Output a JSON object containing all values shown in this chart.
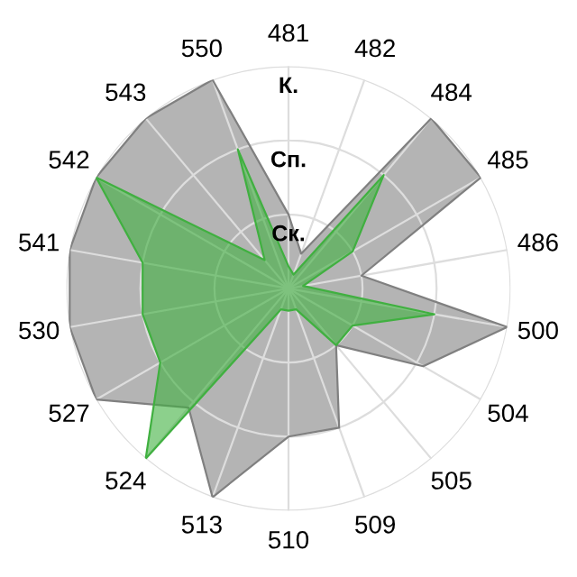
{
  "chart_data": {
    "type": "radar",
    "categories": [
      "481",
      "482",
      "484",
      "485",
      "486",
      "500",
      "504",
      "505",
      "509",
      "510",
      "513",
      "524",
      "527",
      "530",
      "541",
      "542",
      "543",
      "550"
    ],
    "series": [
      {
        "color": "#b4b4b4",
        "values": [
          1,
          0.5,
          3,
          3,
          1,
          3,
          2.1,
          1,
          2,
          2,
          3,
          2.1,
          3,
          3,
          3,
          3,
          3,
          3
        ]
      },
      {
        "color": "#40b040",
        "values": [
          0.3,
          0.2,
          2,
          1,
          0.2,
          2,
          1,
          1,
          0.3,
          0.3,
          0.3,
          3,
          2,
          2,
          2,
          3,
          0.5,
          2
        ]
      }
    ],
    "ylim": [
      0,
      3
    ],
    "yticks": [
      {
        "value": 1,
        "label": "Ск."
      },
      {
        "value": 2,
        "label": "Сп."
      },
      {
        "value": 3,
        "label": "К."
      }
    ],
    "grid": true
  }
}
